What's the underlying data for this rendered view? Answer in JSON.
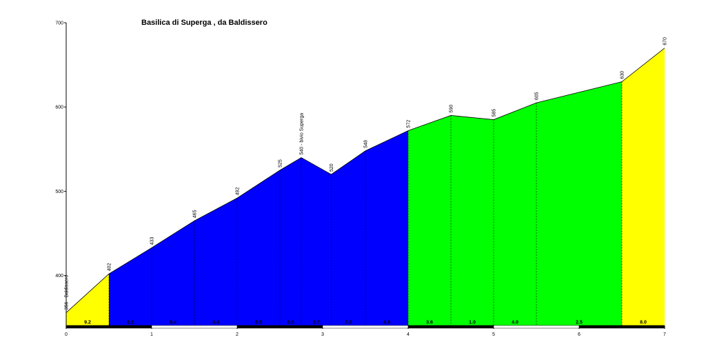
{
  "chart_data": {
    "type": "area",
    "title": "Basilica di Superga , da Baldissero",
    "xlabel": "",
    "ylabel": "",
    "xlim": [
      0,
      7
    ],
    "ylim": [
      340,
      700
    ],
    "x_ticks": [
      "0",
      "1",
      "2",
      "3",
      "4",
      "5",
      "6",
      "7"
    ],
    "y_ticks": [
      "400",
      "500",
      "600",
      "700"
    ],
    "points": [
      {
        "x": 0.0,
        "y": 356,
        "label": "356 - Baldissero"
      },
      {
        "x": 0.5,
        "y": 402,
        "label": "402"
      },
      {
        "x": 1.0,
        "y": 433,
        "label": "433"
      },
      {
        "x": 1.5,
        "y": 465,
        "label": "465"
      },
      {
        "x": 2.0,
        "y": 492,
        "label": "492"
      },
      {
        "x": 2.5,
        "y": 525,
        "label": "525"
      },
      {
        "x": 2.75,
        "y": 540,
        "label": "540 - bivio Superga"
      },
      {
        "x": 3.1,
        "y": 520,
        "label": "520"
      },
      {
        "x": 3.5,
        "y": 548,
        "label": "548"
      },
      {
        "x": 4.0,
        "y": 572,
        "label": "572"
      },
      {
        "x": 4.5,
        "y": 590,
        "label": "590"
      },
      {
        "x": 5.0,
        "y": 585,
        "label": "585"
      },
      {
        "x": 5.5,
        "y": 605,
        "label": "605"
      },
      {
        "x": 6.5,
        "y": 630,
        "label": "630"
      },
      {
        "x": 7.0,
        "y": 670,
        "label": "670"
      }
    ],
    "segments": [
      {
        "from": 0.0,
        "to": 0.5,
        "color": "#ffff00"
      },
      {
        "from": 0.5,
        "to": 4.0,
        "color": "#0000ff"
      },
      {
        "from": 4.0,
        "to": 6.5,
        "color": "#00ff00"
      },
      {
        "from": 6.5,
        "to": 7.0,
        "color": "#ffff00"
      }
    ],
    "grade_labels": [
      {
        "x": 0.25,
        "text": "9.2"
      },
      {
        "x": 0.75,
        "text": "6.2"
      },
      {
        "x": 1.25,
        "text": "6.4"
      },
      {
        "x": 1.75,
        "text": "5.4"
      },
      {
        "x": 2.25,
        "text": "6.6"
      },
      {
        "x": 2.625,
        "text": "6.0"
      },
      {
        "x": 2.925,
        "text": "5.7"
      },
      {
        "x": 3.3,
        "text": "7.0"
      },
      {
        "x": 3.75,
        "text": "4.8"
      },
      {
        "x": 4.25,
        "text": "3.6"
      },
      {
        "x": 4.75,
        "text": "1.0"
      },
      {
        "x": 5.25,
        "text": "4.0"
      },
      {
        "x": 6.0,
        "text": "2.5"
      },
      {
        "x": 6.75,
        "text": "8.0"
      }
    ],
    "grid": false
  }
}
